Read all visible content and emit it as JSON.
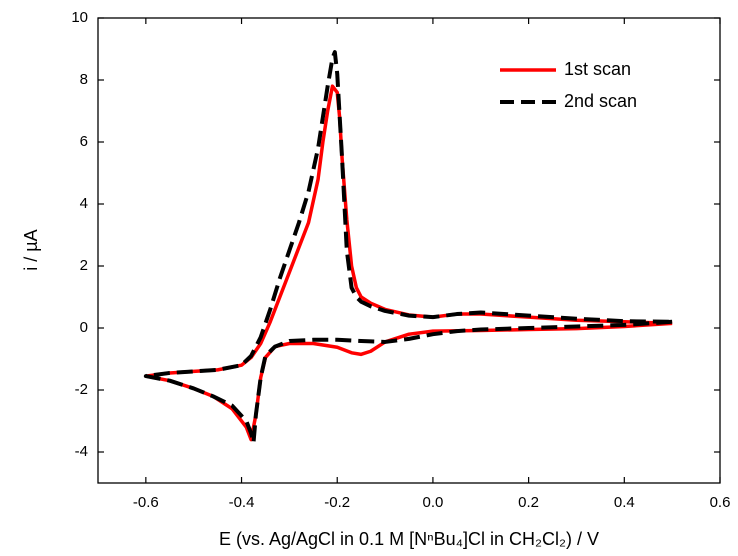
{
  "chart_data": {
    "type": "line",
    "xlabel": "E (vs. Ag/AgCl in 0.1 M [NⁿBu₄]Cl in CH₂Cl₂) / V",
    "ylabel": "i / µA",
    "xlim": [
      -0.7,
      0.6
    ],
    "ylim": [
      -5,
      10
    ],
    "xticks": [
      -0.6,
      -0.4,
      -0.2,
      {
        "value": 0,
        "label": "0.0"
      },
      0.2,
      0.4,
      0.6
    ],
    "yticks": [
      -4,
      -2,
      0,
      2,
      4,
      6,
      8,
      10
    ],
    "legend": "upper right",
    "series": [
      {
        "name": "1st scan",
        "color": "#ff0000",
        "dash": "solid",
        "x": [
          0.5,
          0.4,
          0.3,
          0.2,
          0.1,
          0.0,
          -0.05,
          -0.1,
          -0.13,
          -0.15,
          -0.17,
          -0.2,
          -0.25,
          -0.3,
          -0.33,
          -0.35,
          -0.36,
          -0.37,
          -0.38,
          -0.39,
          -0.42,
          -0.46,
          -0.5,
          -0.55,
          -0.6,
          -0.55,
          -0.5,
          -0.45,
          -0.4,
          -0.38,
          -0.36,
          -0.34,
          -0.32,
          -0.3,
          -0.28,
          -0.26,
          -0.24,
          -0.23,
          -0.22,
          -0.21,
          -0.2,
          -0.195,
          -0.19,
          -0.18,
          -0.17,
          -0.16,
          -0.15,
          -0.13,
          -0.1,
          -0.05,
          0.0,
          0.05,
          0.1,
          0.2,
          0.3,
          0.4,
          0.5
        ],
        "values": [
          0.15,
          0.05,
          -0.02,
          -0.05,
          -0.08,
          -0.1,
          -0.2,
          -0.45,
          -0.75,
          -0.85,
          -0.8,
          -0.62,
          -0.5,
          -0.5,
          -0.6,
          -0.95,
          -1.6,
          -2.8,
          -3.6,
          -3.2,
          -2.6,
          -2.2,
          -1.95,
          -1.7,
          -1.55,
          -1.45,
          -1.4,
          -1.35,
          -1.2,
          -0.95,
          -0.5,
          0.2,
          1.0,
          1.8,
          2.6,
          3.4,
          4.8,
          6.0,
          7.0,
          7.8,
          7.6,
          6.8,
          5.5,
          3.5,
          2.0,
          1.3,
          1.0,
          0.8,
          0.6,
          0.42,
          0.35,
          0.45,
          0.45,
          0.35,
          0.25,
          0.2,
          0.15
        ]
      },
      {
        "name": "2nd scan",
        "color": "#000000",
        "dash": "dashed",
        "x": [
          0.5,
          0.4,
          0.3,
          0.2,
          0.1,
          0.05,
          0.0,
          -0.05,
          -0.1,
          -0.15,
          -0.2,
          -0.25,
          -0.3,
          -0.33,
          -0.35,
          -0.36,
          -0.37,
          -0.375,
          -0.38,
          -0.39,
          -0.42,
          -0.46,
          -0.5,
          -0.55,
          -0.6,
          -0.55,
          -0.5,
          -0.45,
          -0.4,
          -0.38,
          -0.36,
          -0.34,
          -0.32,
          -0.3,
          -0.28,
          -0.26,
          -0.24,
          -0.23,
          -0.22,
          -0.21,
          -0.205,
          -0.2,
          -0.19,
          -0.18,
          -0.17,
          -0.16,
          -0.15,
          -0.13,
          -0.1,
          -0.05,
          0.0,
          0.05,
          0.1,
          0.2,
          0.3,
          0.4,
          0.5
        ],
        "values": [
          0.2,
          0.1,
          0.05,
          0.0,
          -0.05,
          -0.1,
          -0.2,
          -0.35,
          -0.45,
          -0.42,
          -0.38,
          -0.38,
          -0.42,
          -0.6,
          -0.9,
          -1.6,
          -2.8,
          -3.7,
          -3.4,
          -3.0,
          -2.5,
          -2.2,
          -1.95,
          -1.7,
          -1.55,
          -1.45,
          -1.4,
          -1.35,
          -1.2,
          -0.9,
          -0.3,
          0.6,
          1.6,
          2.5,
          3.4,
          4.4,
          5.8,
          6.8,
          7.8,
          8.7,
          8.9,
          8.2,
          5.5,
          2.5,
          1.3,
          1.0,
          0.85,
          0.7,
          0.55,
          0.4,
          0.35,
          0.45,
          0.5,
          0.4,
          0.3,
          0.22,
          0.2
        ]
      }
    ]
  }
}
